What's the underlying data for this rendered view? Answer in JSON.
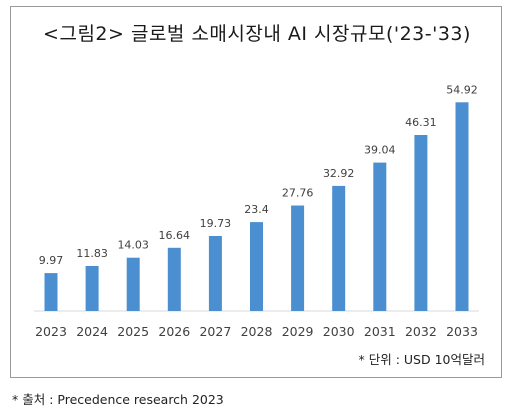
{
  "colors": {
    "bar": "#4b8fd0",
    "axis": "#d9d9d9",
    "text": "#404040",
    "frame_border": "#9a9a9a"
  },
  "chart_data": {
    "type": "bar",
    "title": "<그림2> 글로벌 소매시장내 AI 시장규모('23-'33)",
    "categories": [
      "2023",
      "2024",
      "2025",
      "2026",
      "2027",
      "2028",
      "2029",
      "2030",
      "2031",
      "2032",
      "2033"
    ],
    "values": [
      9.97,
      11.83,
      14.03,
      16.64,
      19.73,
      23.4,
      27.76,
      32.92,
      39.04,
      46.31,
      54.92
    ],
    "value_labels": [
      "9.97",
      "11.83",
      "14.03",
      "16.64",
      "19.73",
      "23.4",
      "27.76",
      "32.92",
      "39.04",
      "46.31",
      "54.92"
    ],
    "ylim": [
      0,
      60
    ],
    "grid": false,
    "legend": "none"
  },
  "notes": {
    "unit": "* 단위 : USD 10억달러",
    "source": "* 출처 : Precedence research 2023"
  }
}
